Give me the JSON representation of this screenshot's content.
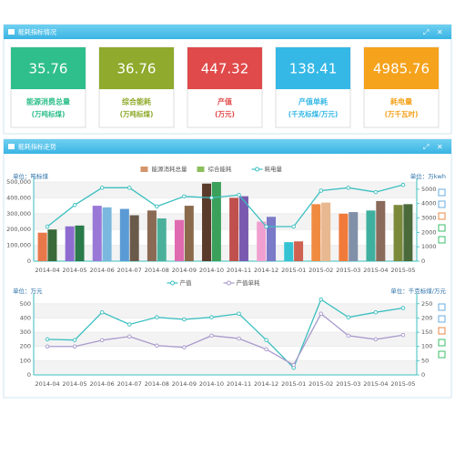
{
  "panels": [
    {
      "title": "能耗指标情况"
    },
    {
      "title": "能耗指标走势"
    }
  ],
  "cards": [
    {
      "value": 35.76,
      "label": "能源消费总量",
      "unit": "(万吨标煤)",
      "color": "#2fbf8c"
    },
    {
      "value": 36.76,
      "label": "综合能耗",
      "unit": "(万吨标煤)",
      "color": "#8faa2c"
    },
    {
      "value": 447.32,
      "label": "产值",
      "unit": "(万元)",
      "color": "#e04a4a"
    },
    {
      "value": 138.41,
      "label": "产值单耗",
      "unit": "(千克标煤/万元)",
      "color": "#35b8e6"
    },
    {
      "value": 4985.76,
      "label": "耗电量",
      "unit": "(万千瓦时)",
      "color": "#f5a21c"
    }
  ],
  "chart_data": [
    {
      "type": "combo",
      "y_label": "单位：吨标煤",
      "y2_label": "单位：万kwh",
      "categories": [
        "2014-04",
        "2014-05",
        "2014-06",
        "2014-07",
        "2014-08",
        "2014-09",
        "2014-10",
        "2014-11",
        "2014-12",
        "2015-01",
        "2015-02",
        "2015-03",
        "2015-04",
        "2015-05"
      ],
      "series": [
        {
          "name": "能源消耗总量",
          "kind": "bar",
          "color": "#d4956a",
          "values": [
            180000,
            220000,
            350000,
            330000,
            320000,
            260000,
            490000,
            400000,
            250000,
            120000,
            360000,
            300000,
            320000,
            355000
          ],
          "bar_colors": [
            "#e8784a",
            "#8e6ccf",
            "#9a78d8",
            "#5b9bd5",
            "#8a6a55",
            "#e06ab0",
            "#5a3a2a",
            "#c0504d",
            "#f0a0d0",
            "#33c3d3",
            "#f08a40",
            "#f07a3a",
            "#3fb0a0",
            "#7a8a3a"
          ]
        },
        {
          "name": "综合能耗",
          "kind": "bar",
          "color": "#8bbf5b",
          "values": [
            200000,
            225000,
            340000,
            290000,
            270000,
            350000,
            500000,
            410000,
            280000,
            125000,
            370000,
            310000,
            380000,
            360000
          ],
          "bar_colors": [
            "#3a6a3a",
            "#2a7a4a",
            "#7ab8e0",
            "#6a5a4a",
            "#4ab09a",
            "#8a6a4a",
            "#3aa05a",
            "#7a5ab0",
            "#7a7ac8",
            "#d06050",
            "#e8b890",
            "#8090a8",
            "#8a6a5a",
            "#4a6a3a"
          ]
        },
        {
          "name": "耗电量",
          "kind": "line",
          "axis": "y2",
          "color": "#3bbfc0",
          "values": [
            2400,
            3900,
            5100,
            5100,
            3800,
            4500,
            4400,
            4600,
            2400,
            2400,
            4900,
            5100,
            4800,
            5300
          ]
        }
      ],
      "ylim": [
        0,
        500000
      ],
      "yticks": [
        0,
        {
          "value": 100000,
          "label": "100,000"
        },
        {
          "value": 200000,
          "label": "200,000"
        },
        {
          "value": 300000,
          "label": "300,000"
        },
        {
          "value": 400000,
          "label": "400,000"
        },
        {
          "value": 500000,
          "label": "500,000"
        }
      ],
      "y2lim": [
        0,
        5500
      ],
      "y2ticks": [
        0,
        1000,
        2000,
        3000,
        4000,
        5000
      ],
      "grid": true
    },
    {
      "type": "line",
      "y_label": "单位：万元",
      "y2_label": "单位：千克标煤/万元",
      "categories": [
        "2014-04",
        "2014-05",
        "2014-06",
        "2014-07",
        "2014-08",
        "2014-09",
        "2014-10",
        "2014-11",
        "2014-12",
        "2015-01",
        "2015-02",
        "2015-03",
        "2015-04",
        "2015-05"
      ],
      "series": [
        {
          "name": "产值",
          "color": "#3bbfc0",
          "values": [
            250,
            245,
            440,
            355,
            405,
            390,
            405,
            430,
            245,
            50,
            530,
            405,
            440,
            470
          ]
        },
        {
          "name": "产值单耗",
          "axis": "y2",
          "color": "#a899cc",
          "values": [
            100,
            100,
            122,
            135,
            103,
            97,
            138,
            128,
            90,
            35,
            215,
            138,
            125,
            140
          ]
        }
      ],
      "ylim": [
        0,
        550
      ],
      "yticks": [
        0,
        100,
        200,
        300,
        400,
        500
      ],
      "y2lim": [
        0,
        275
      ],
      "y2ticks": [
        0,
        50,
        100,
        150,
        200,
        250
      ],
      "grid": true
    }
  ]
}
